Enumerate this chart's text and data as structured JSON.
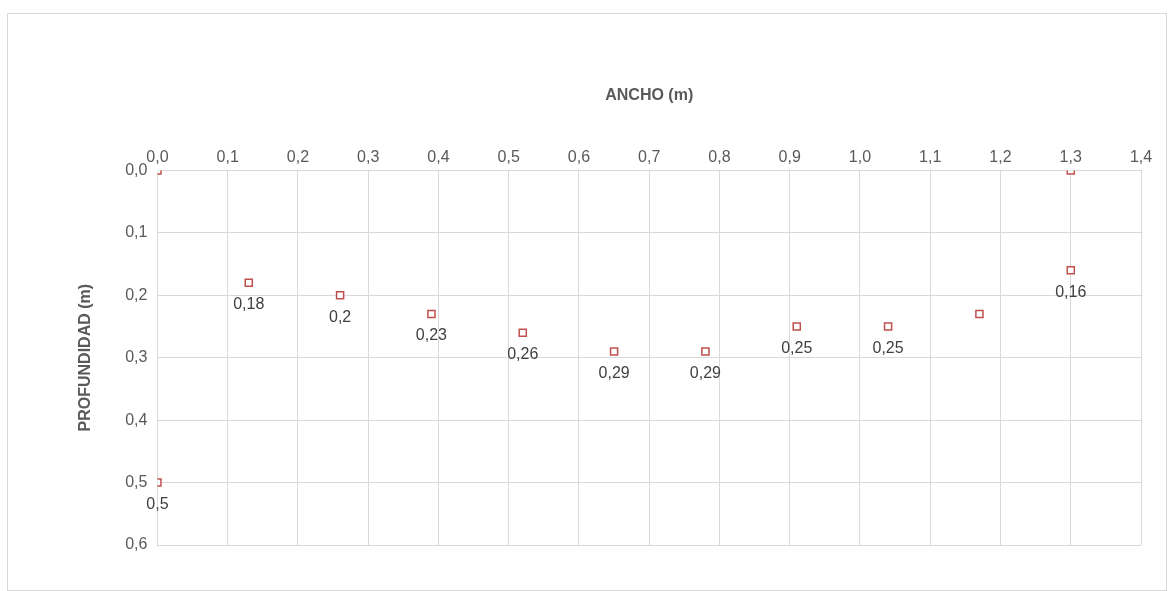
{
  "chart_data": {
    "type": "scatter",
    "xlabel": "ANCHO (m)",
    "ylabel": "PROFUNDIDAD (m)",
    "x": [
      0,
      0,
      0.13,
      0.26,
      0.39,
      0.52,
      0.65,
      0.78,
      0.91,
      1.04,
      1.17,
      1.3,
      1.3
    ],
    "series": [
      {
        "color": "#c0504d",
        "values": [
          0,
          0.5,
          0.18,
          0.2,
          0.23,
          0.26,
          0.29,
          0.29,
          0.25,
          0.25,
          0.23,
          0.16,
          0
        ],
        "value_labels": [
          null,
          "0,5",
          "0,18",
          "0,2",
          "0,23",
          "0,26",
          "0,29",
          "0,29",
          "0,25",
          "0,25",
          null,
          "0,16",
          null
        ]
      }
    ],
    "xlim": [
      0,
      1.4
    ],
    "xticks": [
      {
        "value": 0,
        "label": "0,0"
      },
      {
        "value": 0.1,
        "label": "0,1"
      },
      {
        "value": 0.2,
        "label": "0,2"
      },
      {
        "value": 0.3,
        "label": "0,3"
      },
      {
        "value": 0.4,
        "label": "0,4"
      },
      {
        "value": 0.5,
        "label": "0,5"
      },
      {
        "value": 0.6,
        "label": "0,6"
      },
      {
        "value": 0.7,
        "label": "0,7"
      },
      {
        "value": 0.8,
        "label": "0,8"
      },
      {
        "value": 0.9,
        "label": "0,9"
      },
      {
        "value": 1,
        "label": "1,0"
      },
      {
        "value": 1.1,
        "label": "1,1"
      },
      {
        "value": 1.2,
        "label": "1,2"
      },
      {
        "value": 1.3,
        "label": "1,3"
      },
      {
        "value": 1.4,
        "label": "1,4"
      }
    ],
    "ylim": [
      0.6,
      0
    ],
    "yticks": [
      {
        "value": 0,
        "label": "0,0"
      },
      {
        "value": 0.1,
        "label": "0,1"
      },
      {
        "value": 0.2,
        "label": "0,2"
      },
      {
        "value": 0.3,
        "label": "0,3"
      },
      {
        "value": 0.4,
        "label": "0,4"
      },
      {
        "value": 0.5,
        "label": "0,5"
      },
      {
        "value": 0.6,
        "label": "0,6"
      }
    ],
    "grid": true,
    "marker": "square",
    "legend": false
  }
}
